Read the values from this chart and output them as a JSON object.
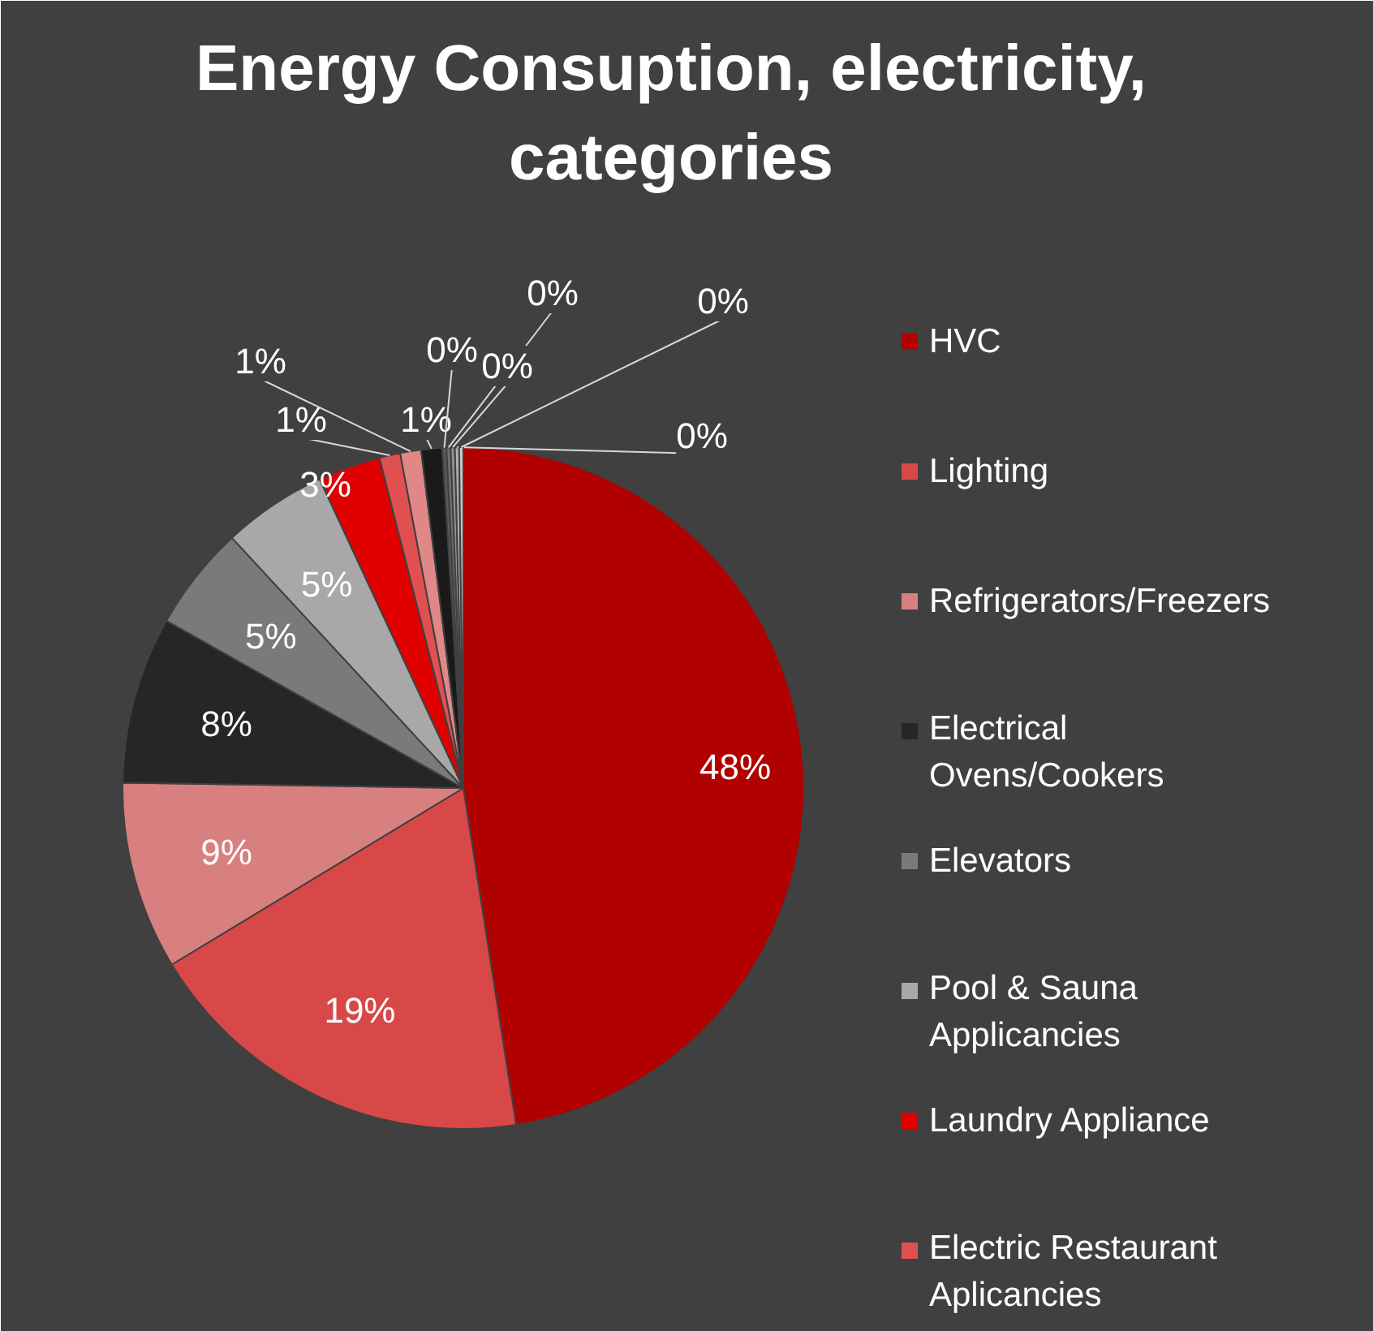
{
  "chart_data": {
    "type": "pie",
    "title": "Energy Consuption, electricity, categories",
    "categories": [
      "HVC",
      "Lighting",
      "Refrigerators/Freezers",
      "Electrical Ovens/Cookers",
      "Elevators",
      "Pool & Sauna Applicancies",
      "Laundry Appliance",
      "Electric Restaurant Aplicancies",
      null,
      null,
      null,
      null,
      null,
      null,
      null
    ],
    "values": [
      48,
      19,
      9,
      8,
      5,
      5,
      3,
      1,
      1,
      1,
      0.2,
      0.2,
      0.2,
      0.2,
      0.2
    ],
    "value_labels": [
      "48%",
      "19%",
      "9%",
      "8%",
      "5%",
      "5%",
      "3%",
      "1%",
      "1%",
      "1%",
      "0%",
      "0%",
      "0%",
      "0%",
      "0%"
    ],
    "colors": [
      "#b00000",
      "#d84848",
      "#d88080",
      "#262626",
      "#7a7a7a",
      "#a8a8a8",
      "#e00000",
      "#e05050",
      "#e08888",
      "#1a1a1a",
      "#5a5a5a",
      "#707070",
      "#909090",
      "#b0b0b0",
      "#c8c8c8"
    ],
    "legend": "right"
  }
}
